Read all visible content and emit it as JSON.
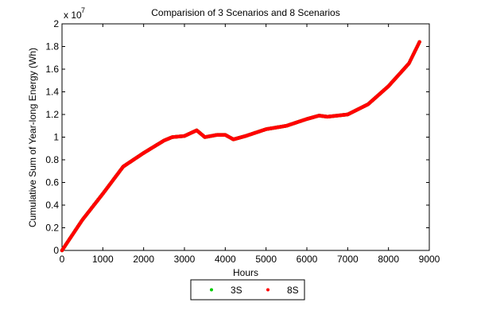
{
  "chart_data": {
    "type": "scatter",
    "title": "Comparision of 3 Scenarios and 8 Scenarios",
    "xlabel": "Hours",
    "ylabel": "Cumulative Sum of Year-long Energy (Wh)",
    "y_multiplier": "x 10",
    "y_exponent": "7",
    "xlim": [
      0,
      9000
    ],
    "ylim": [
      0,
      2
    ],
    "xticks": [
      "0",
      "1000",
      "2000",
      "3000",
      "4000",
      "5000",
      "6000",
      "7000",
      "8000",
      "9000"
    ],
    "yticks": [
      "0",
      "0.2",
      "0.4",
      "0.6",
      "0.8",
      "1",
      "1.2",
      "1.4",
      "1.6",
      "1.8",
      "2"
    ],
    "grid": false,
    "legend_position": "bottom",
    "series": [
      {
        "name": "3S",
        "color": "#00cc00",
        "marker": "dot",
        "x": [
          0,
          500,
          1000,
          1500,
          2000,
          2500,
          2700,
          3000,
          3300,
          3500,
          3800,
          4000,
          4200,
          4500,
          5000,
          5500,
          6000,
          6300,
          6500,
          7000,
          7500,
          8000,
          8500,
          8760
        ],
        "y": [
          0,
          0.27,
          0.5,
          0.74,
          0.86,
          0.97,
          1.0,
          1.01,
          1.06,
          1.0,
          1.02,
          1.02,
          0.98,
          1.01,
          1.07,
          1.1,
          1.16,
          1.19,
          1.18,
          1.2,
          1.29,
          1.45,
          1.65,
          1.84
        ]
      },
      {
        "name": "8S",
        "color": "#ff0000",
        "marker": "dot",
        "x": [
          0,
          500,
          1000,
          1500,
          2000,
          2500,
          2700,
          3000,
          3300,
          3500,
          3800,
          4000,
          4200,
          4500,
          5000,
          5500,
          6000,
          6300,
          6500,
          7000,
          7500,
          8000,
          8500,
          8760
        ],
        "y": [
          0,
          0.27,
          0.5,
          0.74,
          0.86,
          0.97,
          1.0,
          1.01,
          1.06,
          1.0,
          1.02,
          1.02,
          0.98,
          1.01,
          1.07,
          1.1,
          1.16,
          1.19,
          1.18,
          1.2,
          1.29,
          1.45,
          1.65,
          1.84
        ]
      }
    ]
  }
}
